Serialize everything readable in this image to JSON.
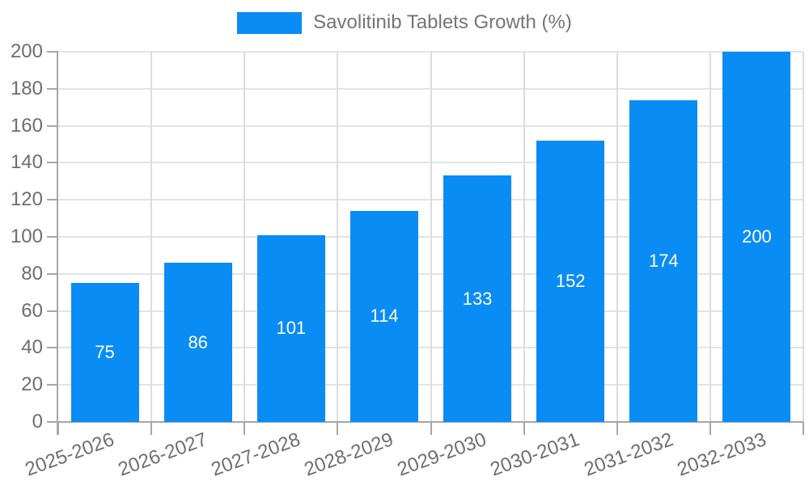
{
  "legend": {
    "label": "Savolitinib Tablets Growth (%)"
  },
  "colors": {
    "bar": "#0a8cf5",
    "grid_horizontal": "#e3e3e3",
    "grid_vertical": "#dcdcdc",
    "axis": "#a6a6a6",
    "axis_label": "#6e6e6e",
    "legend_text": "#757575",
    "value_label": "#ffffff",
    "background": "#ffffff"
  },
  "chart_data": {
    "type": "bar",
    "title": "Savolitinib Tablets Growth (%)",
    "categories": [
      "2025-2026",
      "2026-2027",
      "2027-2028",
      "2028-2029",
      "2029-2030",
      "2030-2031",
      "2031-2032",
      "2032-2033"
    ],
    "values": [
      75,
      86,
      101,
      114,
      133,
      152,
      174,
      200
    ],
    "series": [
      {
        "name": "Savolitinib Tablets Growth (%)",
        "values": [
          75,
          86,
          101,
          114,
          133,
          152,
          174,
          200
        ]
      }
    ],
    "xlabel": "",
    "ylabel": "",
    "ylim": [
      0,
      200
    ],
    "ytick_step": 20,
    "ytick_labels": [
      "0",
      "20",
      "40",
      "60",
      "80",
      "100",
      "120",
      "140",
      "160",
      "180",
      "200"
    ],
    "grid": true,
    "legend_position": "top-center",
    "value_labels_inside_bars": true,
    "x_label_rotation_deg": -20
  }
}
